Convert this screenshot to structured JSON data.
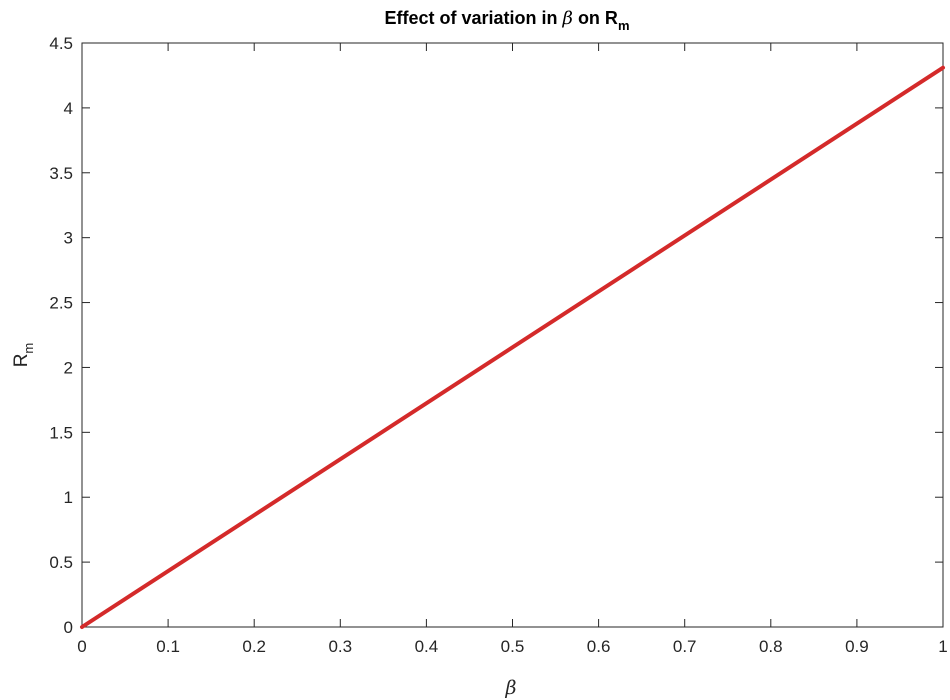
{
  "chart_data": {
    "type": "line",
    "title": {
      "prefix": "Effect of variation in ",
      "symbol": "β",
      "middle": " on R",
      "subscript": "m"
    },
    "xlabel": "β",
    "ylabel": {
      "main": "R",
      "subscript": "m"
    },
    "xlim": [
      0,
      1
    ],
    "ylim": [
      0,
      4.5
    ],
    "xticks": [
      0,
      0.1,
      0.2,
      0.3,
      0.4,
      0.5,
      0.6,
      0.7,
      0.8,
      0.9,
      1
    ],
    "xtick_labels": [
      "0",
      "0.1",
      "0.2",
      "0.3",
      "0.4",
      "0.5",
      "0.6",
      "0.7",
      "0.8",
      "0.9",
      "1"
    ],
    "yticks": [
      0,
      0.5,
      1,
      1.5,
      2,
      2.5,
      3,
      3.5,
      4,
      4.5
    ],
    "ytick_labels": [
      "0",
      "0.5",
      "1",
      "1.5",
      "2",
      "2.5",
      "3",
      "3.5",
      "4",
      "4.5"
    ],
    "grid": false,
    "series": [
      {
        "color": "#d42a2a",
        "x": [
          0,
          1
        ],
        "y": [
          0,
          4.31
        ]
      }
    ]
  }
}
